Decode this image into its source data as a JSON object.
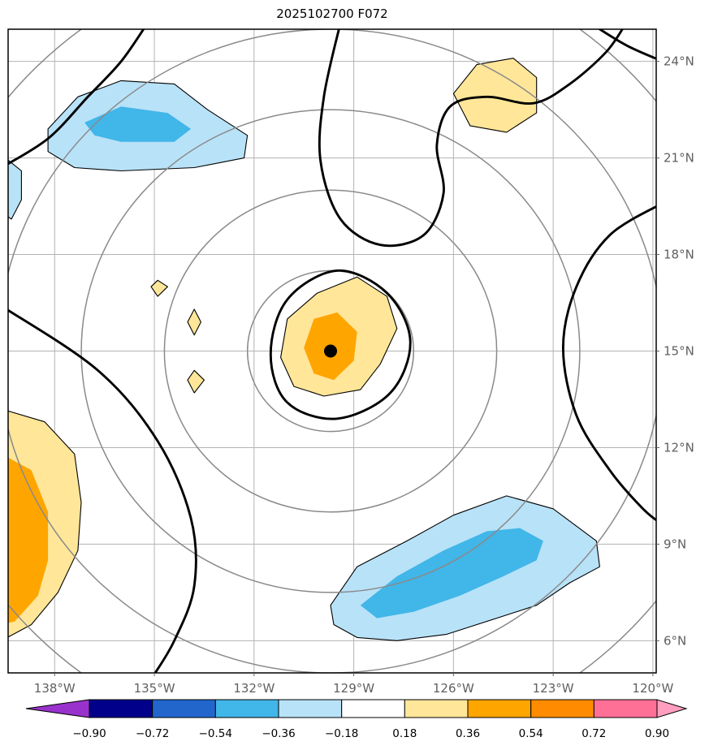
{
  "title": "2025102700 F072",
  "chart_data": {
    "type": "filled-contour-map",
    "title": "2025102700 F072",
    "x_axis": {
      "tick_values": [
        -138,
        -135,
        -132,
        -129,
        -126,
        -123,
        -120
      ],
      "tick_labels": [
        "138°W",
        "135°W",
        "132°W",
        "129°W",
        "126°W",
        "123°W",
        "120°W"
      ]
    },
    "y_axis": {
      "tick_values": [
        24,
        21,
        18,
        15,
        12,
        9,
        6
      ],
      "tick_labels": [
        "24°N",
        "21°N",
        "18°N",
        "15°N",
        "12°N",
        "9°N",
        "6°N"
      ]
    },
    "lon_range": [
      -139.4,
      -119.9
    ],
    "lat_range": [
      5.0,
      25.0
    ],
    "grid": true,
    "center_marker": {
      "lon": -129.7,
      "lat": 15.0
    },
    "range_rings_deg": [
      2.5,
      5.0,
      7.5,
      10.0,
      12.5
    ],
    "colors": {
      "grid": "#b3b3b3",
      "rings": "#8a8a8a",
      "contour": "#000000",
      "frame": "#000000",
      "tick_label": "#606060",
      "title": "#000000",
      "marker": "#000000",
      "positive_light": "#FFE699",
      "positive_strong": "#FFA500",
      "negative_light": "#B8E2F8",
      "negative_strong": "#41B6E8"
    },
    "shaded_regions": [
      {
        "name": "northwest-negative-pale",
        "level": "-0.36 to -0.18",
        "color": "#B8E2F8",
        "outline": true,
        "points": [
          [
            -138.2,
            21.9
          ],
          [
            -137.3,
            22.9
          ],
          [
            -136.0,
            23.4
          ],
          [
            -134.4,
            23.3
          ],
          [
            -133.4,
            22.5
          ],
          [
            -132.2,
            21.7
          ],
          [
            -132.3,
            21.0
          ],
          [
            -133.8,
            20.7
          ],
          [
            -136.0,
            20.6
          ],
          [
            -137.4,
            20.7
          ],
          [
            -138.2,
            21.2
          ]
        ]
      },
      {
        "name": "northwest-negative-core",
        "level": "-0.54 to -0.36",
        "color": "#41B6E8",
        "outline": false,
        "points": [
          [
            -137.1,
            22.1
          ],
          [
            -136.0,
            22.6
          ],
          [
            -134.6,
            22.4
          ],
          [
            -133.9,
            21.9
          ],
          [
            -134.4,
            21.5
          ],
          [
            -136.0,
            21.5
          ],
          [
            -136.8,
            21.7
          ]
        ]
      },
      {
        "name": "west-edge-negative-sliver",
        "level": "-0.36 to -0.18",
        "color": "#B8E2F8",
        "outline": true,
        "points": [
          [
            -139.6,
            21.1
          ],
          [
            -139.0,
            20.6
          ],
          [
            -139.0,
            19.7
          ],
          [
            -139.3,
            19.1
          ],
          [
            -139.6,
            19.3
          ]
        ]
      },
      {
        "name": "north-positive-hexagon",
        "level": "0.18 to 0.36",
        "color": "#FFE699",
        "outline": true,
        "points": [
          [
            -126.0,
            23.0
          ],
          [
            -125.3,
            23.9
          ],
          [
            -124.2,
            24.1
          ],
          [
            -123.5,
            23.5
          ],
          [
            -123.5,
            22.4
          ],
          [
            -124.4,
            21.8
          ],
          [
            -125.5,
            22.0
          ]
        ]
      },
      {
        "name": "center-positive-pale",
        "level": "0.18 to 0.36",
        "color": "#FFE699",
        "outline": true,
        "points": [
          [
            -131.2,
            14.8
          ],
          [
            -131.0,
            16.0
          ],
          [
            -130.1,
            16.8
          ],
          [
            -128.9,
            17.3
          ],
          [
            -128.0,
            16.7
          ],
          [
            -127.7,
            15.7
          ],
          [
            -128.2,
            14.6
          ],
          [
            -128.8,
            13.8
          ],
          [
            -129.9,
            13.6
          ],
          [
            -130.8,
            13.9
          ]
        ]
      },
      {
        "name": "center-positive-core",
        "level": "0.36 to 0.54",
        "color": "#FFA500",
        "outline": false,
        "points": [
          [
            -130.5,
            15.1
          ],
          [
            -130.2,
            16.0
          ],
          [
            -129.5,
            16.2
          ],
          [
            -128.9,
            15.6
          ],
          [
            -129.0,
            14.7
          ],
          [
            -129.6,
            14.1
          ],
          [
            -130.2,
            14.3
          ]
        ]
      },
      {
        "name": "small-positive-diamond-1",
        "level": "0.18 to 0.36",
        "color": "#FFE699",
        "outline": true,
        "points": [
          [
            -134.9,
            17.2
          ],
          [
            -134.6,
            17.0
          ],
          [
            -134.9,
            16.7
          ],
          [
            -135.1,
            17.0
          ]
        ]
      },
      {
        "name": "small-positive-diamond-2",
        "level": "0.18 to 0.36",
        "color": "#FFE699",
        "outline": true,
        "points": [
          [
            -133.8,
            16.3
          ],
          [
            -133.6,
            15.9
          ],
          [
            -133.8,
            15.5
          ],
          [
            -134.0,
            15.9
          ]
        ]
      },
      {
        "name": "small-positive-diamond-3",
        "level": "0.18 to 0.36",
        "color": "#FFE699",
        "outline": true,
        "points": [
          [
            -133.8,
            14.4
          ],
          [
            -133.5,
            14.1
          ],
          [
            -133.8,
            13.7
          ],
          [
            -134.0,
            14.1
          ]
        ]
      },
      {
        "name": "southwest-positive-pale",
        "level": "0.18 to 0.36",
        "color": "#FFE699",
        "outline": true,
        "points": [
          [
            -139.6,
            13.2
          ],
          [
            -138.3,
            12.8
          ],
          [
            -137.4,
            11.8
          ],
          [
            -137.2,
            10.3
          ],
          [
            -137.3,
            8.8
          ],
          [
            -137.9,
            7.5
          ],
          [
            -138.7,
            6.5
          ],
          [
            -139.6,
            6.0
          ]
        ]
      },
      {
        "name": "southwest-positive-core",
        "level": "0.36 to 0.54",
        "color": "#FFA500",
        "outline": false,
        "points": [
          [
            -139.6,
            11.8
          ],
          [
            -138.7,
            11.3
          ],
          [
            -138.2,
            10.0
          ],
          [
            -138.2,
            8.5
          ],
          [
            -138.5,
            7.4
          ],
          [
            -139.2,
            6.6
          ],
          [
            -139.6,
            6.5
          ]
        ]
      },
      {
        "name": "southeast-negative-pale",
        "level": "-0.36 to -0.18",
        "color": "#B8E2F8",
        "outline": true,
        "points": [
          [
            -129.7,
            7.1
          ],
          [
            -128.9,
            8.3
          ],
          [
            -127.4,
            9.1
          ],
          [
            -126.0,
            9.9
          ],
          [
            -124.4,
            10.5
          ],
          [
            -123.0,
            10.1
          ],
          [
            -121.7,
            9.1
          ],
          [
            -121.6,
            8.3
          ],
          [
            -122.5,
            7.8
          ],
          [
            -123.5,
            7.1
          ],
          [
            -124.7,
            6.7
          ],
          [
            -126.2,
            6.2
          ],
          [
            -127.7,
            6.0
          ],
          [
            -128.9,
            6.1
          ],
          [
            -129.6,
            6.5
          ]
        ]
      },
      {
        "name": "southeast-negative-core",
        "level": "-0.54 to -0.36",
        "color": "#41B6E8",
        "outline": false,
        "points": [
          [
            -128.8,
            7.1
          ],
          [
            -127.7,
            8.0
          ],
          [
            -126.3,
            8.8
          ],
          [
            -125.0,
            9.4
          ],
          [
            -124.0,
            9.5
          ],
          [
            -123.3,
            9.1
          ],
          [
            -123.5,
            8.5
          ],
          [
            -124.5,
            8.0
          ],
          [
            -125.8,
            7.4
          ],
          [
            -127.2,
            6.9
          ],
          [
            -128.3,
            6.7
          ]
        ]
      }
    ],
    "contours": [
      {
        "name": "thick-contour-northwest-diagonal",
        "closed": false,
        "points": [
          [
            -139.6,
            20.7
          ],
          [
            -138.2,
            21.6
          ],
          [
            -137.0,
            22.9
          ],
          [
            -136.0,
            24.0
          ],
          [
            -135.2,
            25.2
          ]
        ]
      },
      {
        "name": "thick-contour-main-s-curve",
        "closed": false,
        "points": [
          [
            -129.4,
            25.2
          ],
          [
            -129.9,
            22.9
          ],
          [
            -130.0,
            20.9
          ],
          [
            -129.4,
            19.1
          ],
          [
            -128.2,
            18.3
          ],
          [
            -126.9,
            18.6
          ],
          [
            -126.3,
            19.9
          ],
          [
            -126.5,
            21.4
          ],
          [
            -126.1,
            22.6
          ],
          [
            -125.0,
            22.9
          ],
          [
            -123.6,
            22.7
          ],
          [
            -122.5,
            23.3
          ],
          [
            -121.4,
            24.3
          ],
          [
            -120.8,
            25.2
          ]
        ]
      },
      {
        "name": "thick-contour-northeast-corner",
        "closed": false,
        "points": [
          [
            -121.9,
            25.2
          ],
          [
            -120.8,
            24.5
          ],
          [
            -119.7,
            24.0
          ]
        ]
      },
      {
        "name": "thick-contour-east-arc",
        "closed": false,
        "points": [
          [
            -119.7,
            19.6
          ],
          [
            -121.3,
            18.6
          ],
          [
            -122.3,
            17.0
          ],
          [
            -122.7,
            15.1
          ],
          [
            -122.3,
            13.0
          ],
          [
            -121.3,
            11.3
          ],
          [
            -120.3,
            10.1
          ],
          [
            -119.7,
            9.6
          ]
        ]
      },
      {
        "name": "thick-contour-center-loop",
        "closed": true,
        "points": [
          [
            -131.5,
            14.9
          ],
          [
            -131.0,
            16.6
          ],
          [
            -129.5,
            17.5
          ],
          [
            -128.0,
            16.8
          ],
          [
            -127.3,
            15.3
          ],
          [
            -127.9,
            13.7
          ],
          [
            -129.5,
            12.9
          ],
          [
            -131.0,
            13.4
          ]
        ]
      },
      {
        "name": "thick-contour-southwest-sweep",
        "closed": false,
        "points": [
          [
            -139.6,
            16.4
          ],
          [
            -136.7,
            14.4
          ],
          [
            -134.9,
            12.2
          ],
          [
            -133.9,
            9.8
          ],
          [
            -133.8,
            7.7
          ],
          [
            -134.4,
            6.0
          ],
          [
            -135.1,
            4.8
          ]
        ]
      }
    ],
    "colorbar": {
      "labels": [
        "−0.90",
        "−0.72",
        "−0.54",
        "−0.36",
        "−0.18",
        "0.18",
        "0.36",
        "0.54",
        "0.72",
        "0.90"
      ],
      "segment_colors": [
        "#00008B",
        "#2266CC",
        "#41B6E8",
        "#B8E2F8",
        "#FFFFFF",
        "#FFE699",
        "#FFA500",
        "#FF8C00",
        "#FF7096"
      ],
      "under_color": "#9932CC",
      "over_color": "#FF9EBE"
    }
  }
}
